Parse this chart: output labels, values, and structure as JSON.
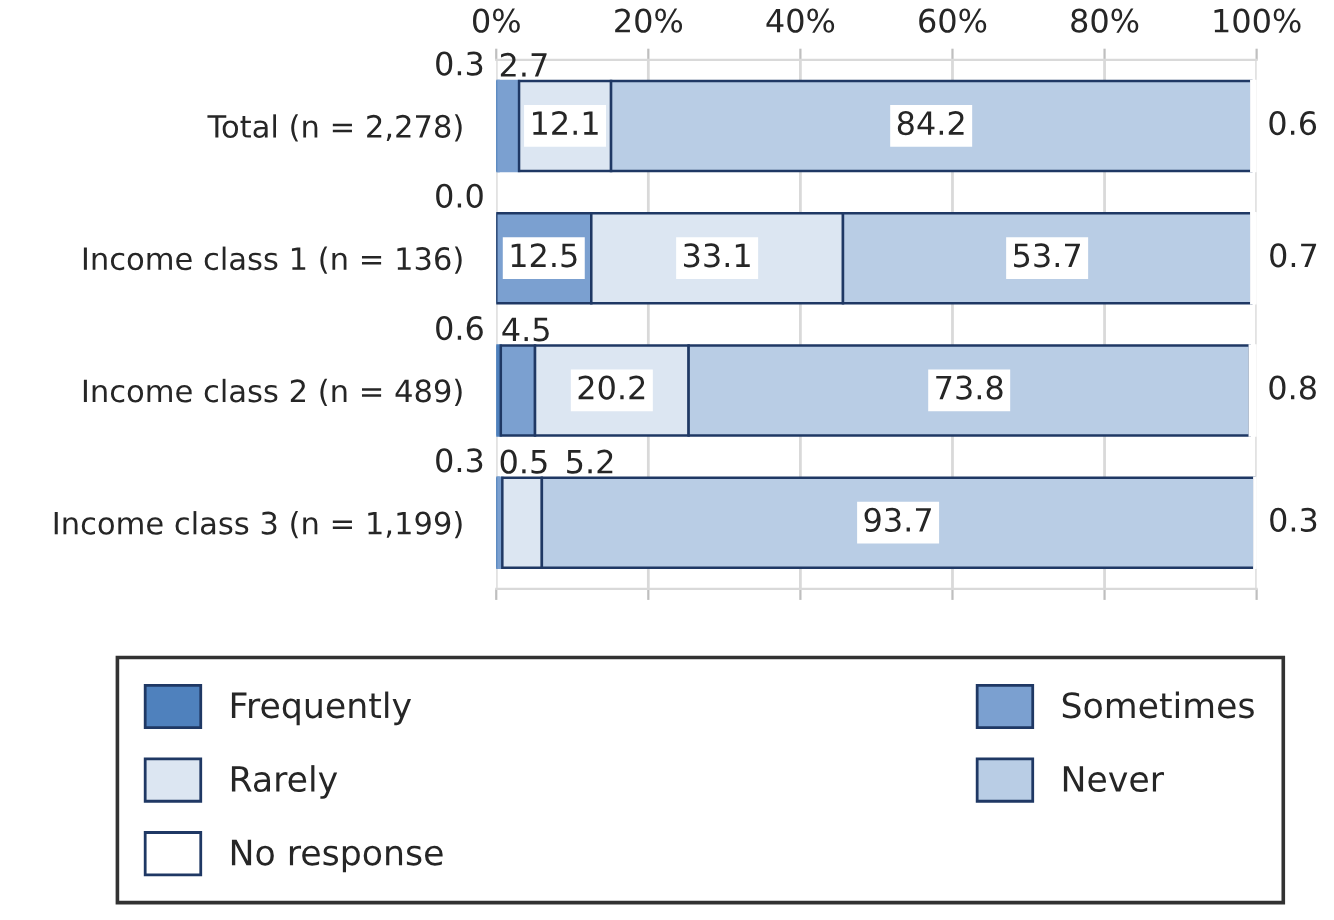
{
  "chart_data": {
    "type": "bar",
    "orientation": "horizontal",
    "stacked": true,
    "categories": [
      "Total (n = 2,278)",
      "Income class 1 (n = 136)",
      "Income class 2 (n = 489)",
      "Income class 3 (n = 1,199)"
    ],
    "series": [
      {
        "name": "Frequently",
        "color": "#4f81bd",
        "values": [
          0.3,
          0.0,
          0.6,
          0.3
        ],
        "value_labels": [
          "0.3",
          "0.0",
          "0.6",
          "0.3"
        ]
      },
      {
        "name": "Sometimes",
        "color": "#7ba0d0",
        "values": [
          2.7,
          12.5,
          4.5,
          0.5
        ],
        "value_labels": [
          "2.7",
          "12.5",
          "4.5",
          "0.5"
        ]
      },
      {
        "name": "Rarely",
        "color": "#dce6f2",
        "values": [
          12.1,
          33.1,
          20.2,
          5.2
        ],
        "value_labels": [
          "12.1",
          "33.1",
          "20.2",
          "5.2"
        ]
      },
      {
        "name": "Never",
        "color": "#b9cde5",
        "values": [
          84.2,
          53.7,
          73.8,
          93.7
        ],
        "value_labels": [
          "84.2",
          "53.7",
          "73.8",
          "93.7"
        ]
      },
      {
        "name": "No response",
        "color": "#ffffff",
        "values": [
          0.6,
          0.7,
          0.8,
          0.3
        ],
        "value_labels": [
          "0.6",
          "0.7",
          "0.8",
          "0.3"
        ]
      }
    ],
    "xlim": [
      0,
      100
    ],
    "xticks": [
      {
        "value": 0,
        "label": "0%"
      },
      {
        "value": 20,
        "label": "20%"
      },
      {
        "value": 40,
        "label": "40%"
      },
      {
        "value": 60,
        "label": "60%"
      },
      {
        "value": 80,
        "label": "80%"
      },
      {
        "value": 100,
        "label": "100%"
      }
    ],
    "grid": "x",
    "legend": "bottom"
  }
}
